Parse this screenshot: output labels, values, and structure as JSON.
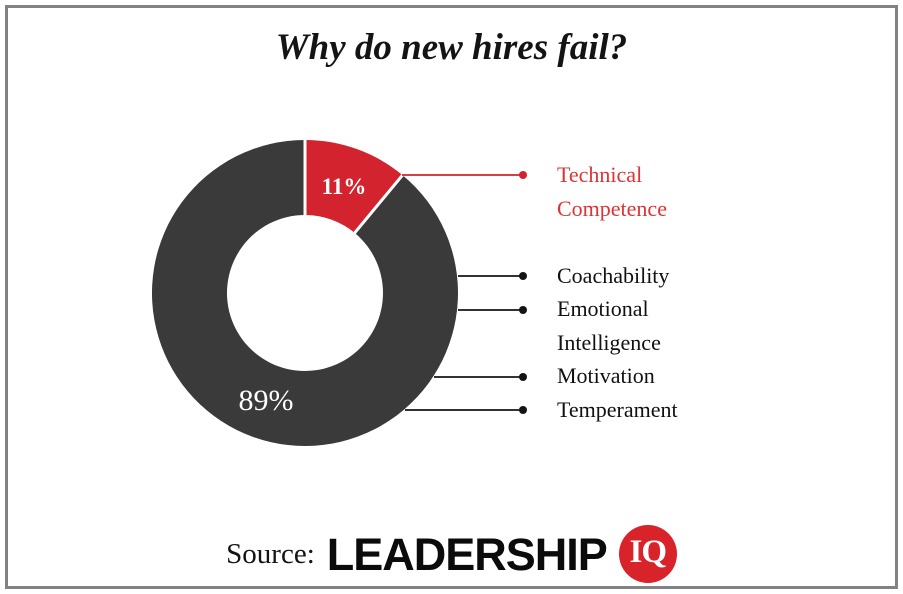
{
  "title": "Why do new hires fail?",
  "chart_data": {
    "type": "pie",
    "subtype": "donut",
    "title": "Why do new hires fail?",
    "units": "%",
    "direction": "clockwise",
    "start_angle_deg": 0,
    "legend_position": "right",
    "slices": [
      {
        "name": "technical-competence",
        "label": "Technical Competence",
        "value": 11,
        "display": "11%",
        "color": "#d2232e"
      },
      {
        "name": "other-factors",
        "label": "Coachability + Emotional Intelligence + Motivation + Temperament",
        "value": 89,
        "display": "89%",
        "color": "#3b3a3a"
      }
    ],
    "callouts": [
      {
        "text": "Technical Competence",
        "color": "#dd3333",
        "line_color": "#d2232e"
      },
      {
        "text": "Coachability",
        "color": "#111111",
        "line_color": "#141414"
      },
      {
        "text": "Emotional Intelligence",
        "color": "#111111",
        "line_color": "#141414"
      },
      {
        "text": "Motivation",
        "color": "#111111",
        "line_color": "#141414"
      },
      {
        "text": "Temperament",
        "color": "#111111",
        "line_color": "#141414"
      }
    ]
  },
  "source": {
    "prefix": "Source:",
    "brand": "LEADERSHIP",
    "badge": "IQ"
  },
  "colors": {
    "frame_border": "#828282",
    "logo_red": "#d8232a",
    "slice_gap_white": "#ffffff",
    "title_black": "#141414"
  }
}
